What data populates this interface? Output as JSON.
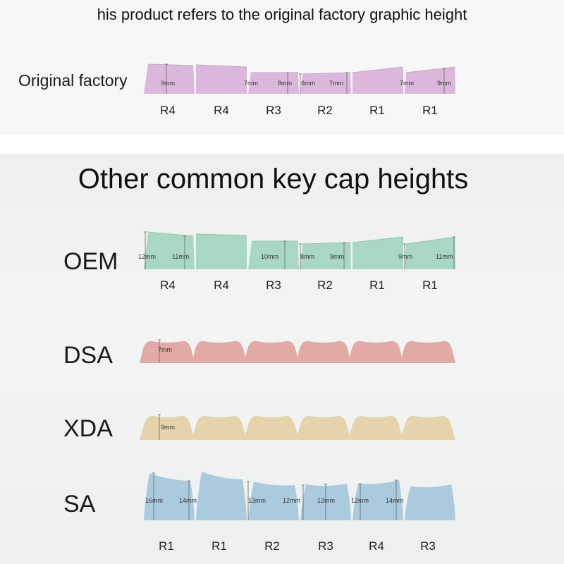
{
  "header_note": "his product refers to the original factory graphic height",
  "section_title": "Other common key cap heights",
  "colors": {
    "original_factory": "#dcb7dc",
    "oem": "#a8d8c4",
    "dsa": "#e2aaa6",
    "xda": "#e5d3ac",
    "sa": "#aacbde"
  },
  "profiles": [
    {
      "id": "original",
      "label": "Original factory",
      "row_labels": [
        "R4",
        "R4",
        "R3",
        "R2",
        "R1",
        "R1"
      ],
      "measurements": [
        "9mm",
        "7mm",
        "8mm",
        "6mm",
        "7mm",
        "7mm",
        "9mm"
      ]
    },
    {
      "id": "oem",
      "label": "OEM",
      "row_labels": [
        "R4",
        "R4",
        "R3",
        "R2",
        "R1",
        "R1"
      ],
      "measurements": [
        "12mm",
        "11mm",
        "10mm",
        "8mm",
        "9mm",
        "9mm",
        "11mm"
      ]
    },
    {
      "id": "dsa",
      "label": "DSA",
      "measurements": [
        "7mm"
      ]
    },
    {
      "id": "xda",
      "label": "XDA",
      "measurements": [
        "9mm"
      ]
    },
    {
      "id": "sa",
      "label": "SA",
      "row_labels": [
        "R1",
        "R1",
        "R2",
        "R3",
        "R4",
        "R3"
      ],
      "measurements": [
        "16mm",
        "14mm",
        "13mm",
        "12mm",
        "12mm",
        "12mm",
        "14mm"
      ]
    }
  ]
}
